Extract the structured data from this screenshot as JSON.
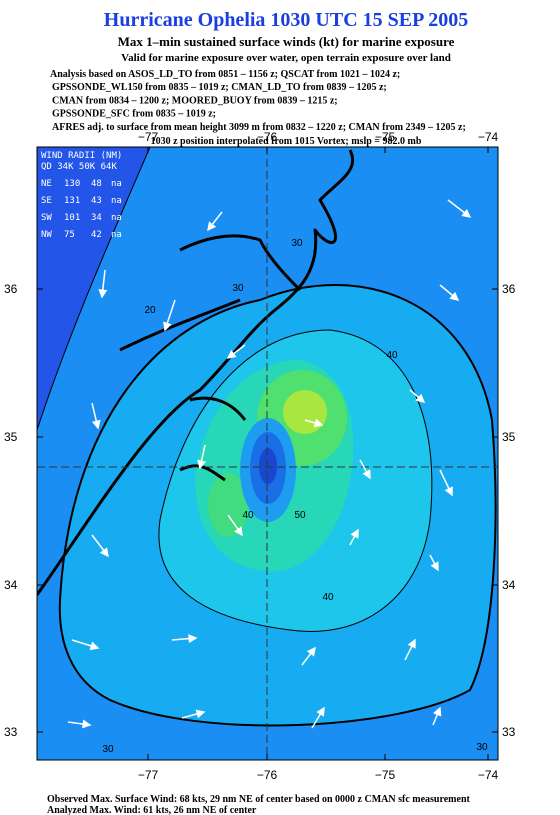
{
  "header": {
    "title": "Hurricane Ophelia 1030 UTC 15 SEP 2005",
    "subtitle": "Max 1–min sustained surface winds (kt) for marine exposure",
    "exposure_note": "Valid for marine exposure over water, open terrain exposure over land"
  },
  "analysis": [
    "Analysis based on  ASOS_LD_TO from 0851 – 1156 z;  QSCAT from 1021 – 1024 z;",
    "GPSSONDE_WL150 from 0835 – 1019 z;  CMAN_LD_TO from 0839 – 1205 z;",
    "CMAN from 0834 – 1200 z;  MOORED_BUOY from 0839 – 1215 z;",
    "GPSSONDE_SFC from 0835 – 1019 z;",
    "AFRES adj. to surface from mean height 3099 m from 0832 – 1220 z;  CMAN from 2349 – 1205 z;"
  ],
  "position_note": "1030 z position interpolated from 1015 Vortex; mslp = 982.0 mb",
  "map": {
    "lon_ticks": [
      "−77",
      "−76",
      "−75",
      "−74"
    ],
    "lat_ticks": [
      "36",
      "35",
      "34",
      "33"
    ],
    "wind_radii": {
      "title": "WIND RADII (NM)",
      "header": "QD 34K 50K 64K",
      "rows": [
        [
          "NE",
          "130",
          "48",
          "na"
        ],
        [
          "SE",
          "131",
          "43",
          "na"
        ],
        [
          "SW",
          "101",
          "34",
          "na"
        ],
        [
          "NW",
          "75",
          "42",
          "na"
        ]
      ]
    },
    "contour_labels": [
      "30",
      "30",
      "20",
      "40",
      "50",
      "40",
      "40",
      "30",
      "30"
    ]
  },
  "footer": [
    "Observed Max. Surface Wind: 68 kts, 29 nm NE of center based on 0000 z CMAN sfc measurement",
    "Analyzed Max. Wind: 61 kts, 26 nm NE of center"
  ]
}
